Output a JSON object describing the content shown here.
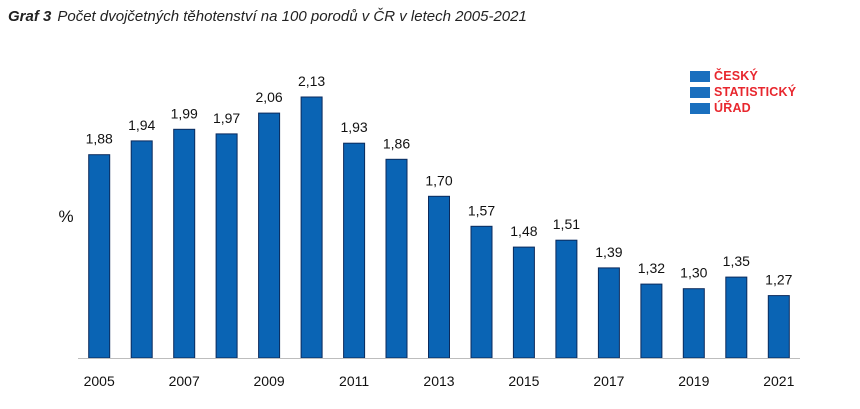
{
  "title": {
    "label": "Graf 3",
    "text": "Počet dvojčetných těhotenství na 100 porodů v ČR v letech 2005-2021"
  },
  "logo": {
    "lines": [
      "ČESKÝ",
      "STATISTICKÝ",
      "ÚŘAD"
    ],
    "text_color": "#e8272e",
    "bar_color": "#1a6fbe"
  },
  "chart_data": {
    "type": "bar",
    "categories": [
      "2005",
      "2006",
      "2007",
      "2008",
      "2009",
      "2010",
      "2011",
      "2012",
      "2013",
      "2014",
      "2015",
      "2016",
      "2017",
      "2018",
      "2019",
      "2020",
      "2021"
    ],
    "x_tick_labels": [
      "2005",
      "",
      "2007",
      "",
      "2009",
      "",
      "2011",
      "",
      "2013",
      "",
      "2015",
      "",
      "2017",
      "",
      "2019",
      "",
      "2021"
    ],
    "values": [
      1.88,
      1.94,
      1.99,
      1.97,
      2.06,
      2.13,
      1.93,
      1.86,
      1.7,
      1.57,
      1.48,
      1.51,
      1.39,
      1.32,
      1.3,
      1.35,
      1.27
    ],
    "data_labels": [
      "1,88",
      "1,94",
      "1,99",
      "1,97",
      "2,06",
      "2,13",
      "1,93",
      "1,86",
      "1,70",
      "1,57",
      "1,48",
      "1,51",
      "1,39",
      "1,32",
      "1,30",
      "1,35",
      "1,27"
    ],
    "ylabel": "%",
    "ylim": [
      1.0,
      2.2
    ],
    "grid": false,
    "bar_color": "#0a64b4",
    "bar_edge_color": "#0b2a5c"
  }
}
